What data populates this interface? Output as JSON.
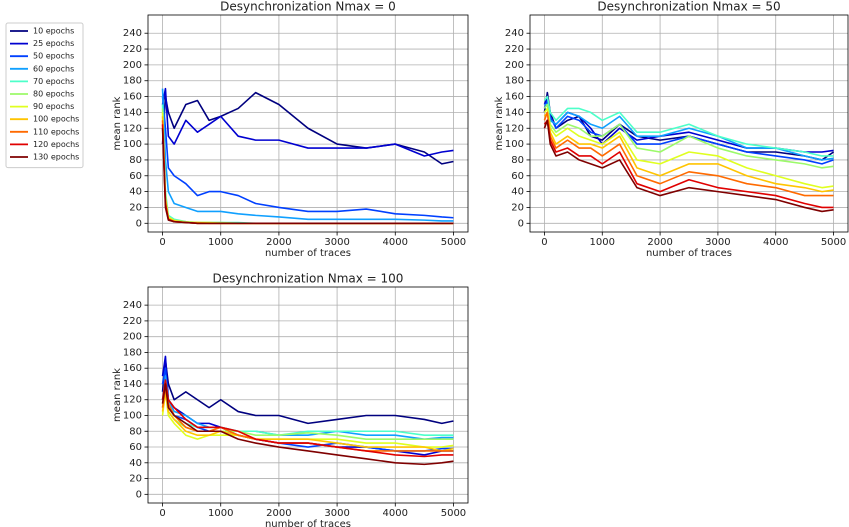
{
  "chart_data": [
    {
      "type": "line",
      "title": "Desynchronization Nmax = 0",
      "xlabel": "number of traces",
      "ylabel": "mean rank",
      "x": [
        0,
        50,
        100,
        200,
        400,
        600,
        800,
        1000,
        1300,
        1600,
        2000,
        2500,
        3000,
        3500,
        4000,
        4500,
        4800,
        5000
      ],
      "xlim": [
        -250,
        5250
      ],
      "ylim": [
        -11,
        263
      ],
      "xticks": [
        0,
        1000,
        2000,
        3000,
        4000,
        5000
      ],
      "yticks": [
        0,
        20,
        40,
        60,
        80,
        100,
        120,
        140,
        160,
        180,
        200,
        220,
        240
      ],
      "grid": true,
      "series": [
        {
          "name": "10 epochs",
          "color": "#00007f",
          "values": [
            100,
            160,
            140,
            120,
            150,
            155,
            130,
            135,
            145,
            165,
            150,
            120,
            100,
            95,
            100,
            90,
            75,
            78
          ]
        },
        {
          "name": "25 epochs",
          "color": "#0000d0",
          "values": [
            150,
            170,
            110,
            100,
            130,
            115,
            125,
            135,
            110,
            105,
            105,
            95,
            95,
            95,
            100,
            85,
            90,
            92
          ]
        },
        {
          "name": "50 epochs",
          "color": "#0040ff",
          "values": [
            160,
            120,
            70,
            60,
            50,
            35,
            40,
            40,
            35,
            25,
            20,
            15,
            15,
            18,
            12,
            10,
            8,
            7
          ]
        },
        {
          "name": "60 epochs",
          "color": "#10a0ff",
          "values": [
            170,
            80,
            40,
            25,
            20,
            15,
            15,
            15,
            12,
            10,
            8,
            5,
            5,
            5,
            5,
            4,
            3,
            3
          ]
        },
        {
          "name": "70 epochs",
          "color": "#4dffc9",
          "values": [
            150,
            40,
            10,
            5,
            2,
            1,
            1,
            1,
            1,
            0,
            0,
            0,
            0,
            0,
            0,
            0,
            0,
            0
          ]
        },
        {
          "name": "80 epochs",
          "color": "#9cfa6a",
          "values": [
            145,
            35,
            8,
            4,
            2,
            1,
            1,
            1,
            0,
            0,
            0,
            0,
            0,
            0,
            0,
            0,
            0,
            0
          ]
        },
        {
          "name": "90 epochs",
          "color": "#e0ff20",
          "values": [
            140,
            30,
            8,
            3,
            1,
            1,
            1,
            0,
            0,
            0,
            0,
            0,
            0,
            0,
            0,
            0,
            0,
            0
          ]
        },
        {
          "name": "100 epochs",
          "color": "#ffc400",
          "values": [
            135,
            30,
            6,
            3,
            1,
            1,
            0,
            0,
            0,
            0,
            0,
            0,
            0,
            0,
            0,
            0,
            0,
            0
          ]
        },
        {
          "name": "110 epochs",
          "color": "#ff6a00",
          "values": [
            130,
            25,
            5,
            2,
            1,
            0,
            0,
            0,
            0,
            0,
            0,
            0,
            0,
            0,
            0,
            0,
            0,
            0
          ]
        },
        {
          "name": "120 epochs",
          "color": "#e00000",
          "values": [
            125,
            25,
            5,
            2,
            1,
            0,
            0,
            0,
            0,
            0,
            0,
            0,
            0,
            0,
            0,
            0,
            0,
            0
          ]
        },
        {
          "name": "130 epochs",
          "color": "#7f0000",
          "values": [
            120,
            20,
            4,
            2,
            1,
            0,
            0,
            0,
            0,
            0,
            0,
            0,
            0,
            0,
            0,
            0,
            0,
            0
          ]
        }
      ]
    },
    {
      "type": "line",
      "title": "Desynchronization Nmax = 50",
      "xlabel": "number of traces",
      "ylabel": "mean rank",
      "x": [
        0,
        50,
        100,
        200,
        400,
        600,
        800,
        1000,
        1300,
        1600,
        2000,
        2500,
        3000,
        3500,
        4000,
        4500,
        4800,
        5000
      ],
      "xlim": [
        -250,
        5250
      ],
      "ylim": [
        -11,
        263
      ],
      "xticks": [
        0,
        1000,
        2000,
        3000,
        4000,
        5000
      ],
      "yticks": [
        0,
        20,
        40,
        60,
        80,
        100,
        120,
        140,
        160,
        180,
        200,
        220,
        240
      ],
      "grid": true,
      "series": [
        {
          "color": "#00007f",
          "values": [
            140,
            165,
            140,
            120,
            130,
            135,
            110,
            105,
            125,
            110,
            105,
            110,
            100,
            90,
            90,
            85,
            80,
            90
          ]
        },
        {
          "color": "#0000d0",
          "values": [
            150,
            160,
            130,
            125,
            140,
            135,
            120,
            100,
            120,
            105,
            110,
            115,
            105,
            95,
            95,
            90,
            90,
            92
          ]
        },
        {
          "color": "#0040ff",
          "values": [
            145,
            155,
            135,
            120,
            135,
            130,
            115,
            110,
            125,
            100,
            100,
            110,
            100,
            90,
            85,
            80,
            75,
            80
          ]
        },
        {
          "color": "#10a0ff",
          "values": [
            150,
            150,
            130,
            125,
            140,
            135,
            125,
            120,
            135,
            110,
            110,
            120,
            110,
            95,
            95,
            85,
            80,
            82
          ]
        },
        {
          "color": "#4dffc9",
          "values": [
            155,
            160,
            140,
            130,
            145,
            145,
            140,
            130,
            140,
            115,
            115,
            125,
            110,
            100,
            95,
            90,
            85,
            85
          ]
        },
        {
          "color": "#9cfa6a",
          "values": [
            145,
            150,
            125,
            115,
            125,
            120,
            110,
            110,
            125,
            95,
            90,
            110,
            95,
            85,
            80,
            75,
            70,
            72
          ]
        },
        {
          "color": "#e0ff20",
          "values": [
            140,
            145,
            120,
            110,
            120,
            110,
            105,
            100,
            115,
            80,
            75,
            90,
            85,
            70,
            60,
            50,
            45,
            47
          ]
        },
        {
          "color": "#ffc400",
          "values": [
            135,
            140,
            115,
            100,
            110,
            100,
            100,
            95,
            110,
            70,
            60,
            75,
            75,
            60,
            50,
            45,
            40,
            42
          ]
        },
        {
          "color": "#ff6a00",
          "values": [
            130,
            140,
            110,
            95,
            105,
            95,
            95,
            85,
            100,
            60,
            50,
            65,
            60,
            50,
            45,
            35,
            35,
            35
          ]
        },
        {
          "color": "#e00000",
          "values": [
            125,
            130,
            105,
            90,
            95,
            85,
            85,
            75,
            90,
            50,
            40,
            55,
            45,
            40,
            35,
            25,
            20,
            20
          ]
        },
        {
          "color": "#7f0000",
          "values": [
            120,
            130,
            100,
            85,
            90,
            80,
            75,
            70,
            80,
            45,
            35,
            45,
            40,
            35,
            30,
            20,
            15,
            17
          ]
        }
      ]
    },
    {
      "type": "line",
      "title": "Desynchronization Nmax = 100",
      "xlabel": "number of traces",
      "ylabel": "mean rank",
      "x": [
        0,
        50,
        100,
        200,
        400,
        600,
        800,
        1000,
        1300,
        1600,
        2000,
        2500,
        3000,
        3500,
        4000,
        4500,
        4800,
        5000
      ],
      "xlim": [
        -250,
        5250
      ],
      "ylim": [
        -11,
        263
      ],
      "xticks": [
        0,
        1000,
        2000,
        3000,
        4000,
        5000
      ],
      "yticks": [
        0,
        20,
        40,
        60,
        80,
        100,
        120,
        140,
        160,
        180,
        200,
        220,
        240
      ],
      "grid": true,
      "series": [
        {
          "color": "#00007f",
          "values": [
            130,
            170,
            140,
            120,
            130,
            120,
            110,
            120,
            105,
            100,
            100,
            90,
            95,
            100,
            100,
            95,
            90,
            93
          ]
        },
        {
          "color": "#0000d0",
          "values": [
            150,
            175,
            120,
            110,
            100,
            90,
            90,
            85,
            75,
            70,
            65,
            65,
            60,
            60,
            55,
            50,
            55,
            55
          ]
        },
        {
          "color": "#0040ff",
          "values": [
            140,
            160,
            115,
            100,
            95,
            85,
            80,
            80,
            75,
            70,
            65,
            60,
            65,
            60,
            55,
            55,
            58,
            58
          ]
        },
        {
          "color": "#10a0ff",
          "values": [
            120,
            150,
            120,
            105,
            100,
            90,
            85,
            85,
            80,
            80,
            75,
            75,
            80,
            75,
            75,
            70,
            72,
            72
          ]
        },
        {
          "color": "#4dffc9",
          "values": [
            110,
            140,
            110,
            100,
            90,
            85,
            85,
            85,
            80,
            80,
            75,
            80,
            80,
            80,
            80,
            75,
            75,
            75
          ]
        },
        {
          "color": "#9cfa6a",
          "values": [
            115,
            135,
            105,
            95,
            85,
            80,
            80,
            80,
            80,
            75,
            75,
            78,
            75,
            70,
            70,
            70,
            70,
            70
          ]
        },
        {
          "color": "#e0ff20",
          "values": [
            100,
            130,
            100,
            90,
            75,
            70,
            75,
            75,
            75,
            70,
            70,
            70,
            70,
            65,
            65,
            60,
            60,
            62
          ]
        },
        {
          "color": "#ffc400",
          "values": [
            105,
            130,
            105,
            95,
            80,
            75,
            75,
            80,
            75,
            70,
            70,
            70,
            65,
            60,
            60,
            60,
            55,
            58
          ]
        },
        {
          "color": "#ff6a00",
          "values": [
            110,
            135,
            115,
            100,
            85,
            80,
            80,
            85,
            75,
            70,
            65,
            65,
            60,
            55,
            55,
            55,
            55,
            55
          ]
        },
        {
          "color": "#e00000",
          "values": [
            120,
            145,
            120,
            110,
            95,
            85,
            85,
            85,
            80,
            70,
            65,
            65,
            60,
            55,
            50,
            48,
            50,
            50
          ]
        },
        {
          "color": "#7f0000",
          "values": [
            115,
            140,
            110,
            100,
            90,
            80,
            80,
            80,
            70,
            65,
            60,
            55,
            50,
            45,
            40,
            38,
            40,
            42
          ]
        }
      ]
    }
  ]
}
